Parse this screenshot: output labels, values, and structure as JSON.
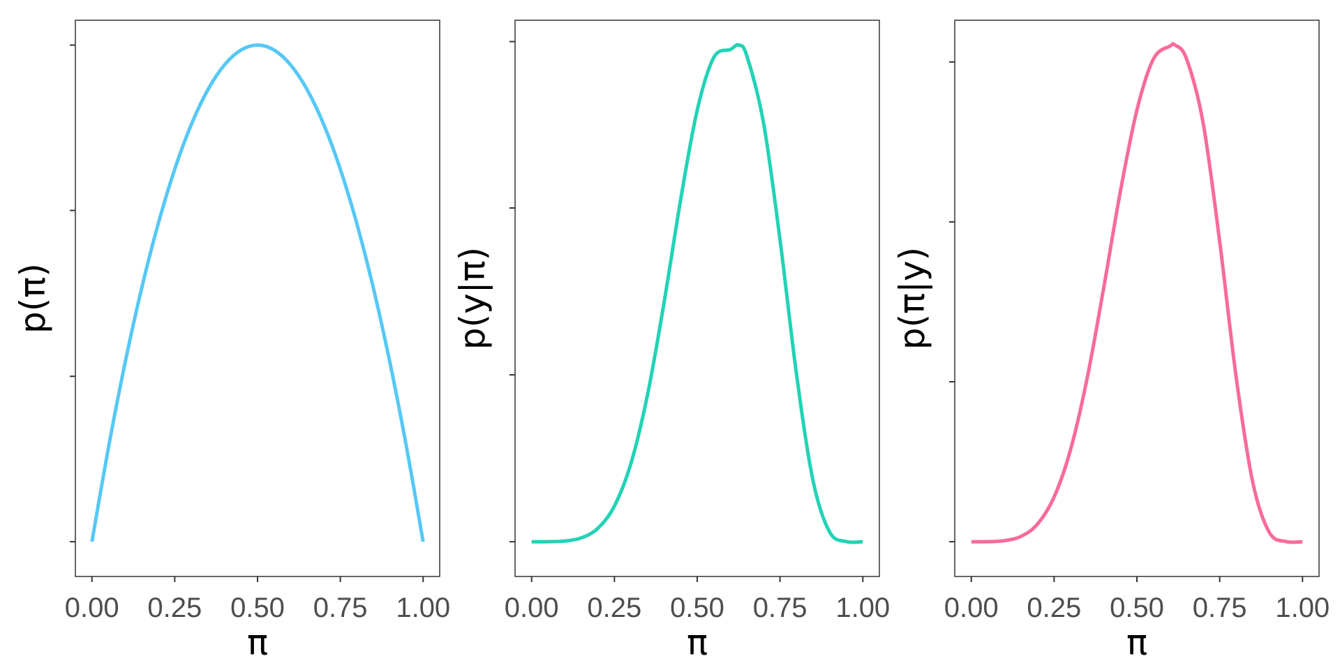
{
  "chart_data": [
    {
      "type": "line",
      "xlabel": "π",
      "ylabel": "p(π)",
      "xlim": [
        -0.05,
        1.05
      ],
      "ylim": [
        -0.07,
        1.05
      ],
      "x_ticks": [
        0,
        0.25,
        0.5,
        0.75,
        1
      ],
      "x_tick_labels": [
        "0.00",
        "0.25",
        "0.50",
        "0.75",
        "1.00"
      ],
      "y_ticks": [
        0,
        0.333,
        0.667,
        1.0
      ],
      "y_tick_labels": [
        "",
        "",
        "",
        ""
      ],
      "grid": false,
      "color": "#56c8f5",
      "series": [
        {
          "x": [
            0,
            0.05,
            0.1,
            0.15,
            0.2,
            0.25,
            0.3,
            0.35,
            0.4,
            0.45,
            0.5,
            0.55,
            0.6,
            0.65,
            0.7,
            0.75,
            0.8,
            0.85,
            0.9,
            0.95,
            1
          ],
          "y": [
            0,
            0.19,
            0.36,
            0.51,
            0.64,
            0.75,
            0.84,
            0.91,
            0.96,
            0.99,
            1.0,
            0.99,
            0.96,
            0.91,
            0.84,
            0.75,
            0.64,
            0.51,
            0.36,
            0.19,
            0
          ]
        }
      ]
    },
    {
      "type": "line",
      "xlabel": "π",
      "ylabel": "p(y|π)",
      "xlim": [
        -0.05,
        1.05
      ],
      "ylim": [
        -0.07,
        1.05
      ],
      "x_ticks": [
        0,
        0.25,
        0.5,
        0.75,
        1
      ],
      "x_tick_labels": [
        "0.00",
        "0.25",
        "0.50",
        "0.75",
        "1.00"
      ],
      "y_ticks": [
        0,
        0.336,
        0.672,
        1.007
      ],
      "y_tick_labels": [
        "",
        "",
        "",
        ""
      ],
      "grid": false,
      "color": "#22d3b5",
      "series": [
        {
          "x": [
            0,
            0.05,
            0.1,
            0.15,
            0.2,
            0.25,
            0.3,
            0.35,
            0.4,
            0.45,
            0.5,
            0.55,
            0.6,
            0.625,
            0.65,
            0.7,
            0.75,
            0.8,
            0.85,
            0.9,
            0.95,
            1
          ],
          "y": [
            0,
            0.0001,
            0.0014,
            0.0077,
            0.0271,
            0.072,
            0.158,
            0.296,
            0.482,
            0.689,
            0.869,
            0.975,
            0.991,
            1.0,
            0.978,
            0.844,
            0.608,
            0.336,
            0.122,
            0.0193,
            0.0003,
            0
          ]
        }
      ]
    },
    {
      "type": "line",
      "xlabel": "π",
      "ylabel": "p(π|y)",
      "xlim": [
        -0.05,
        1.05
      ],
      "ylim": [
        -0.07,
        1.05
      ],
      "x_ticks": [
        0,
        0.25,
        0.5,
        0.75,
        1
      ],
      "x_tick_labels": [
        "0.00",
        "0.25",
        "0.50",
        "0.75",
        "1.00"
      ],
      "y_ticks": [
        0,
        0.322,
        0.644,
        0.966
      ],
      "y_tick_labels": [
        "",
        "",
        "",
        ""
      ],
      "grid": false,
      "color": "#f76b9a",
      "series": [
        {
          "x": [
            0,
            0.05,
            0.1,
            0.15,
            0.2,
            0.25,
            0.3,
            0.35,
            0.4,
            0.45,
            0.5,
            0.55,
            0.6,
            0.615,
            0.65,
            0.7,
            0.75,
            0.8,
            0.85,
            0.9,
            0.95,
            1
          ],
          "y": [
            0,
            0.0001,
            0.0021,
            0.0107,
            0.0356,
            0.09,
            0.186,
            0.33,
            0.512,
            0.705,
            0.869,
            0.972,
            0.998,
            1.0,
            0.972,
            0.843,
            0.604,
            0.33,
            0.119,
            0.0186,
            0.0003,
            0
          ]
        }
      ]
    }
  ]
}
